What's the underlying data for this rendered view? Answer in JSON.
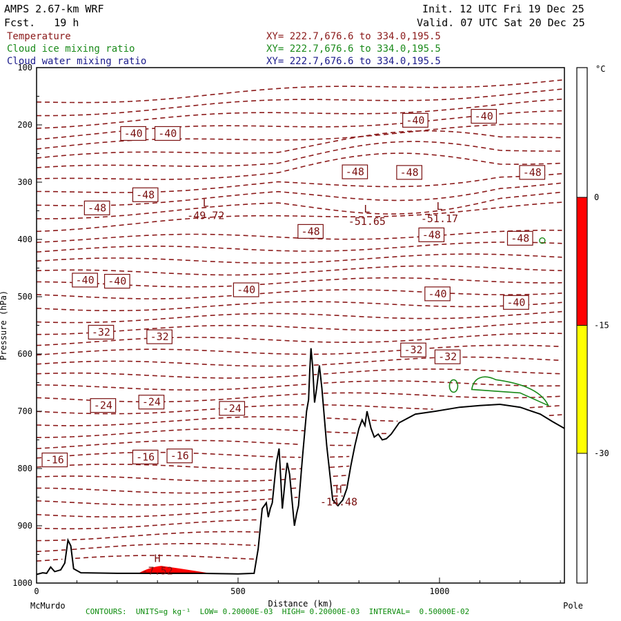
{
  "header": {
    "model": "AMPS 2.67-km WRF",
    "fcst": "Fcst.   19 h",
    "init": "Init. 12 UTC Fri 19 Dec 25",
    "valid": "Valid. 07 UTC Sat 20 Dec 25"
  },
  "legend": [
    {
      "name": "Temperature",
      "xy": "XY= 222.7,676.6 to 334.0,195.5",
      "color": "#8b1a1a"
    },
    {
      "name": "Cloud ice mixing ratio",
      "xy": "XY= 222.7,676.6 to 334.0,195.5",
      "color": "#1a8a1a"
    },
    {
      "name": "Cloud water mixing ratio",
      "xy": "XY= 222.7,676.6 to 334.0,195.5",
      "color": "#1a1a8a"
    }
  ],
  "footer": "CONTOURS:  UNITS=g kg⁻¹  LOW= 0.20000E-03  HIGH= 0.20000E-03  INTERVAL=  0.50000E-02",
  "chart_data": {
    "type": "contour",
    "xlabel": "Distance (km)",
    "ylabel": "Pressure (hPa)",
    "xlim": [
      0,
      1310
    ],
    "ylim": [
      1000,
      100
    ],
    "xticks": [
      0,
      500,
      1000
    ],
    "yticks": [
      100,
      200,
      300,
      400,
      500,
      600,
      700,
      800,
      900,
      1000
    ],
    "x_endpoints": {
      "left": "McMurdo",
      "right": "Pole"
    },
    "colorbar": {
      "unit": "°C",
      "ticks": [
        0,
        -15,
        -30
      ],
      "bands": [
        {
          "from": 0,
          "to": -15,
          "color": "#ff0000"
        },
        {
          "from": -15,
          "to": -30,
          "color": "#ffff00"
        }
      ]
    },
    "labels": [
      {
        "text": "-40",
        "x": 240,
        "p": 215
      },
      {
        "text": "-40",
        "x": 325,
        "p": 215
      },
      {
        "text": "-40",
        "x": 940,
        "p": 192
      },
      {
        "text": "-40",
        "x": 1110,
        "p": 185
      },
      {
        "text": "-48",
        "x": 790,
        "p": 282
      },
      {
        "text": "-48",
        "x": 925,
        "p": 283
      },
      {
        "text": "-48",
        "x": 1230,
        "p": 283
      },
      {
        "text": "-48",
        "x": 270,
        "p": 322
      },
      {
        "text": "-48",
        "x": 150,
        "p": 345
      },
      {
        "text": "-48",
        "x": 680,
        "p": 386
      },
      {
        "text": "-48",
        "x": 980,
        "p": 392
      },
      {
        "text": "-48",
        "x": 1200,
        "p": 398
      },
      {
        "text": "-40",
        "x": 120,
        "p": 471
      },
      {
        "text": "-40",
        "x": 200,
        "p": 473
      },
      {
        "text": "-40",
        "x": 520,
        "p": 488
      },
      {
        "text": "-40",
        "x": 995,
        "p": 495
      },
      {
        "text": "-40",
        "x": 1190,
        "p": 510
      },
      {
        "text": "-32",
        "x": 160,
        "p": 562
      },
      {
        "text": "-32",
        "x": 305,
        "p": 570
      },
      {
        "text": "-32",
        "x": 935,
        "p": 593
      },
      {
        "text": "-32",
        "x": 1020,
        "p": 605
      },
      {
        "text": "-24",
        "x": 165,
        "p": 690
      },
      {
        "text": "-24",
        "x": 285,
        "p": 684
      },
      {
        "text": "-24",
        "x": 485,
        "p": 695
      },
      {
        "text": "-16",
        "x": 45,
        "p": 785
      },
      {
        "text": "-16",
        "x": 270,
        "p": 780
      },
      {
        "text": "-16",
        "x": 355,
        "p": 778
      }
    ],
    "extrema": [
      {
        "type": "L",
        "value": "-49.72",
        "x": 420,
        "p": 355
      },
      {
        "type": "L",
        "value": "-51.65",
        "x": 820,
        "p": 365
      },
      {
        "type": "L",
        "value": "-51.17",
        "x": 1000,
        "p": 360
      },
      {
        "type": "H",
        "value": "-14.48",
        "x": 750,
        "p": 855
      },
      {
        "type": "H",
        "value": "-7.52",
        "x": 300,
        "p": 975
      }
    ],
    "terrain": [
      [
        0,
        985
      ],
      [
        15,
        982
      ],
      [
        25,
        983
      ],
      [
        35,
        972
      ],
      [
        45,
        980
      ],
      [
        60,
        977
      ],
      [
        70,
        965
      ],
      [
        78,
        925
      ],
      [
        85,
        935
      ],
      [
        92,
        975
      ],
      [
        110,
        982
      ],
      [
        200,
        983
      ],
      [
        300,
        983
      ],
      [
        400,
        983
      ],
      [
        500,
        984
      ],
      [
        540,
        983
      ],
      [
        550,
        940
      ],
      [
        560,
        870
      ],
      [
        570,
        860
      ],
      [
        575,
        885
      ],
      [
        580,
        870
      ],
      [
        585,
        860
      ],
      [
        595,
        790
      ],
      [
        602,
        765
      ],
      [
        610,
        870
      ],
      [
        617,
        820
      ],
      [
        622,
        790
      ],
      [
        628,
        810
      ],
      [
        640,
        900
      ],
      [
        645,
        880
      ],
      [
        650,
        865
      ],
      [
        660,
        780
      ],
      [
        670,
        700
      ],
      [
        675,
        680
      ],
      [
        678,
        630
      ],
      [
        681,
        590
      ],
      [
        685,
        620
      ],
      [
        690,
        685
      ],
      [
        695,
        660
      ],
      [
        702,
        620
      ],
      [
        708,
        660
      ],
      [
        720,
        760
      ],
      [
        735,
        855
      ],
      [
        748,
        865
      ],
      [
        760,
        855
      ],
      [
        770,
        835
      ],
      [
        780,
        795
      ],
      [
        790,
        760
      ],
      [
        800,
        730
      ],
      [
        808,
        715
      ],
      [
        815,
        725
      ],
      [
        820,
        700
      ],
      [
        830,
        730
      ],
      [
        838,
        745
      ],
      [
        848,
        740
      ],
      [
        858,
        750
      ],
      [
        868,
        748
      ],
      [
        880,
        740
      ],
      [
        900,
        720
      ],
      [
        940,
        705
      ],
      [
        990,
        700
      ],
      [
        1050,
        693
      ],
      [
        1100,
        690
      ],
      [
        1150,
        688
      ],
      [
        1200,
        693
      ],
      [
        1250,
        705
      ],
      [
        1280,
        718
      ],
      [
        1310,
        730
      ]
    ]
  }
}
